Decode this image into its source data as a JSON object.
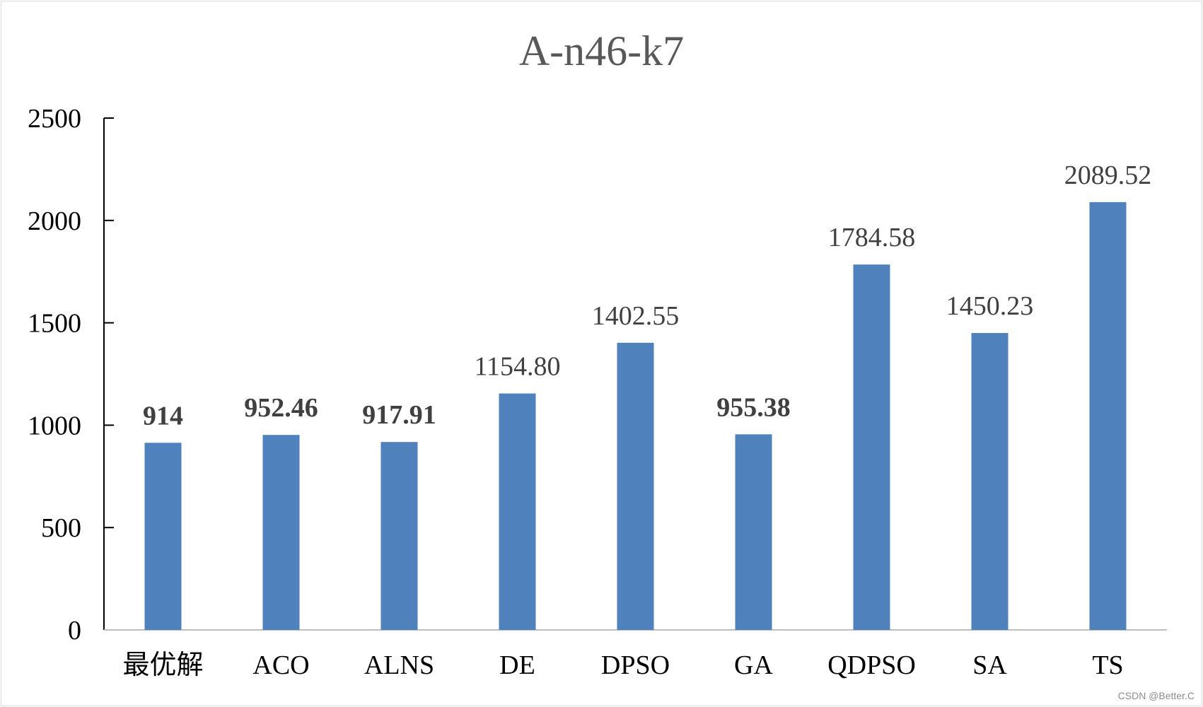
{
  "chart_data": {
    "type": "bar",
    "title": "A-n46-k7",
    "xlabel": "",
    "ylabel": "",
    "categories": [
      "最优解",
      "ACO",
      "ALNS",
      "DE",
      "DPSO",
      "GA",
      "QDPSO",
      "SA",
      "TS"
    ],
    "values": [
      914,
      952.46,
      917.91,
      1154.8,
      1402.55,
      955.38,
      1784.58,
      1450.23,
      2089.52
    ],
    "data_labels": [
      "914",
      "952.46",
      "917.91",
      "1154.80",
      "1402.55",
      "955.38",
      "1784.58",
      "1450.23",
      "2089.52"
    ],
    "label_styles": [
      {
        "color": "#ff0000",
        "bold": true
      },
      {
        "color": "#00b050",
        "bold": true
      },
      {
        "color": "#00b050",
        "bold": true
      },
      {
        "color": "#404040",
        "bold": false
      },
      {
        "color": "#404040",
        "bold": false
      },
      {
        "color": "#00b050",
        "bold": true
      },
      {
        "color": "#404040",
        "bold": false
      },
      {
        "color": "#404040",
        "bold": false
      },
      {
        "color": "#404040",
        "bold": false
      }
    ],
    "ylim": [
      0,
      2500
    ],
    "yticks": [
      0,
      500,
      1000,
      1500,
      2000,
      2500
    ],
    "bar_color": "#4f81bd",
    "grid": false,
    "legend": "none"
  },
  "watermark": "CSDN @Better.C"
}
